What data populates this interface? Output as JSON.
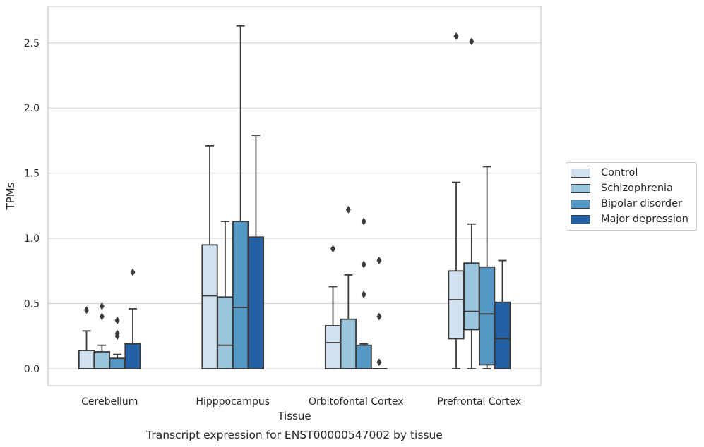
{
  "chart_data": {
    "type": "boxplot",
    "title": "",
    "caption": "Transcript expression for ENST00000547002 by tissue",
    "xlabel": "Tissue",
    "ylabel": "TPMs",
    "ylim": [
      -0.13,
      2.78
    ],
    "yticks": [
      "0.0",
      "0.5",
      "1.0",
      "1.5",
      "2.0",
      "2.5"
    ],
    "grid": "horizontal",
    "legend_position": "right",
    "categories": [
      "Cerebellum",
      "Hipppocampus",
      "Orbitofontal Cortex",
      "Prefrontal Cortex"
    ],
    "series": [
      {
        "name": "Control",
        "color": "#d1e1f0",
        "boxes": [
          {
            "whislo": 0.0,
            "q1": 0.0,
            "med": 0.0,
            "q3": 0.14,
            "whishi": 0.29,
            "fliers": [
              0.45
            ]
          },
          {
            "whislo": 0.0,
            "q1": 0.0,
            "med": 0.56,
            "q3": 0.95,
            "whishi": 1.71,
            "fliers": []
          },
          {
            "whislo": 0.0,
            "q1": 0.0,
            "med": 0.2,
            "q3": 0.33,
            "whishi": 0.63,
            "fliers": [
              0.92
            ]
          },
          {
            "whislo": 0.0,
            "q1": 0.23,
            "med": 0.53,
            "q3": 0.75,
            "whishi": 1.43,
            "fliers": [
              2.55
            ]
          }
        ]
      },
      {
        "name": "Schizophrenia",
        "color": "#9ac5dc",
        "boxes": [
          {
            "whislo": 0.0,
            "q1": 0.0,
            "med": 0.0,
            "q3": 0.13,
            "whishi": 0.18,
            "fliers": [
              0.48,
              0.4
            ]
          },
          {
            "whislo": 0.0,
            "q1": 0.0,
            "med": 0.18,
            "q3": 0.55,
            "whishi": 1.13,
            "fliers": []
          },
          {
            "whislo": 0.0,
            "q1": 0.0,
            "med": 0.0,
            "q3": 0.38,
            "whishi": 0.72,
            "fliers": [
              1.22
            ]
          },
          {
            "whislo": 0.0,
            "q1": 0.3,
            "med": 0.44,
            "q3": 0.81,
            "whishi": 1.11,
            "fliers": [
              2.51
            ]
          }
        ]
      },
      {
        "name": "Bipolar disorder",
        "color": "#5597c5",
        "boxes": [
          {
            "whislo": 0.0,
            "q1": 0.0,
            "med": 0.0,
            "q3": 0.08,
            "whishi": 0.11,
            "fliers": [
              0.37,
              0.27,
              0.25
            ]
          },
          {
            "whislo": 0.0,
            "q1": 0.0,
            "med": 0.47,
            "q3": 1.13,
            "whishi": 2.63,
            "fliers": []
          },
          {
            "whislo": 0.0,
            "q1": 0.0,
            "med": 0.0,
            "q3": 0.18,
            "whishi": 0.19,
            "fliers": [
              1.13,
              0.8,
              0.57
            ]
          },
          {
            "whislo": 0.0,
            "q1": 0.03,
            "med": 0.42,
            "q3": 0.78,
            "whishi": 1.55,
            "fliers": []
          }
        ]
      },
      {
        "name": "Major depression",
        "color": "#2360a4",
        "boxes": [
          {
            "whislo": 0.0,
            "q1": 0.0,
            "med": 0.0,
            "q3": 0.19,
            "whishi": 0.46,
            "fliers": [
              0.74
            ]
          },
          {
            "whislo": 0.0,
            "q1": 0.0,
            "med": 0.0,
            "q3": 1.01,
            "whishi": 1.79,
            "fliers": []
          },
          {
            "whislo": 0.0,
            "q1": 0.0,
            "med": 0.0,
            "q3": 0.0,
            "whishi": 0.0,
            "fliers": [
              0.83,
              0.4,
              0.05
            ]
          },
          {
            "whislo": 0.0,
            "q1": 0.0,
            "med": 0.23,
            "q3": 0.51,
            "whishi": 0.83,
            "fliers": []
          }
        ]
      }
    ]
  }
}
